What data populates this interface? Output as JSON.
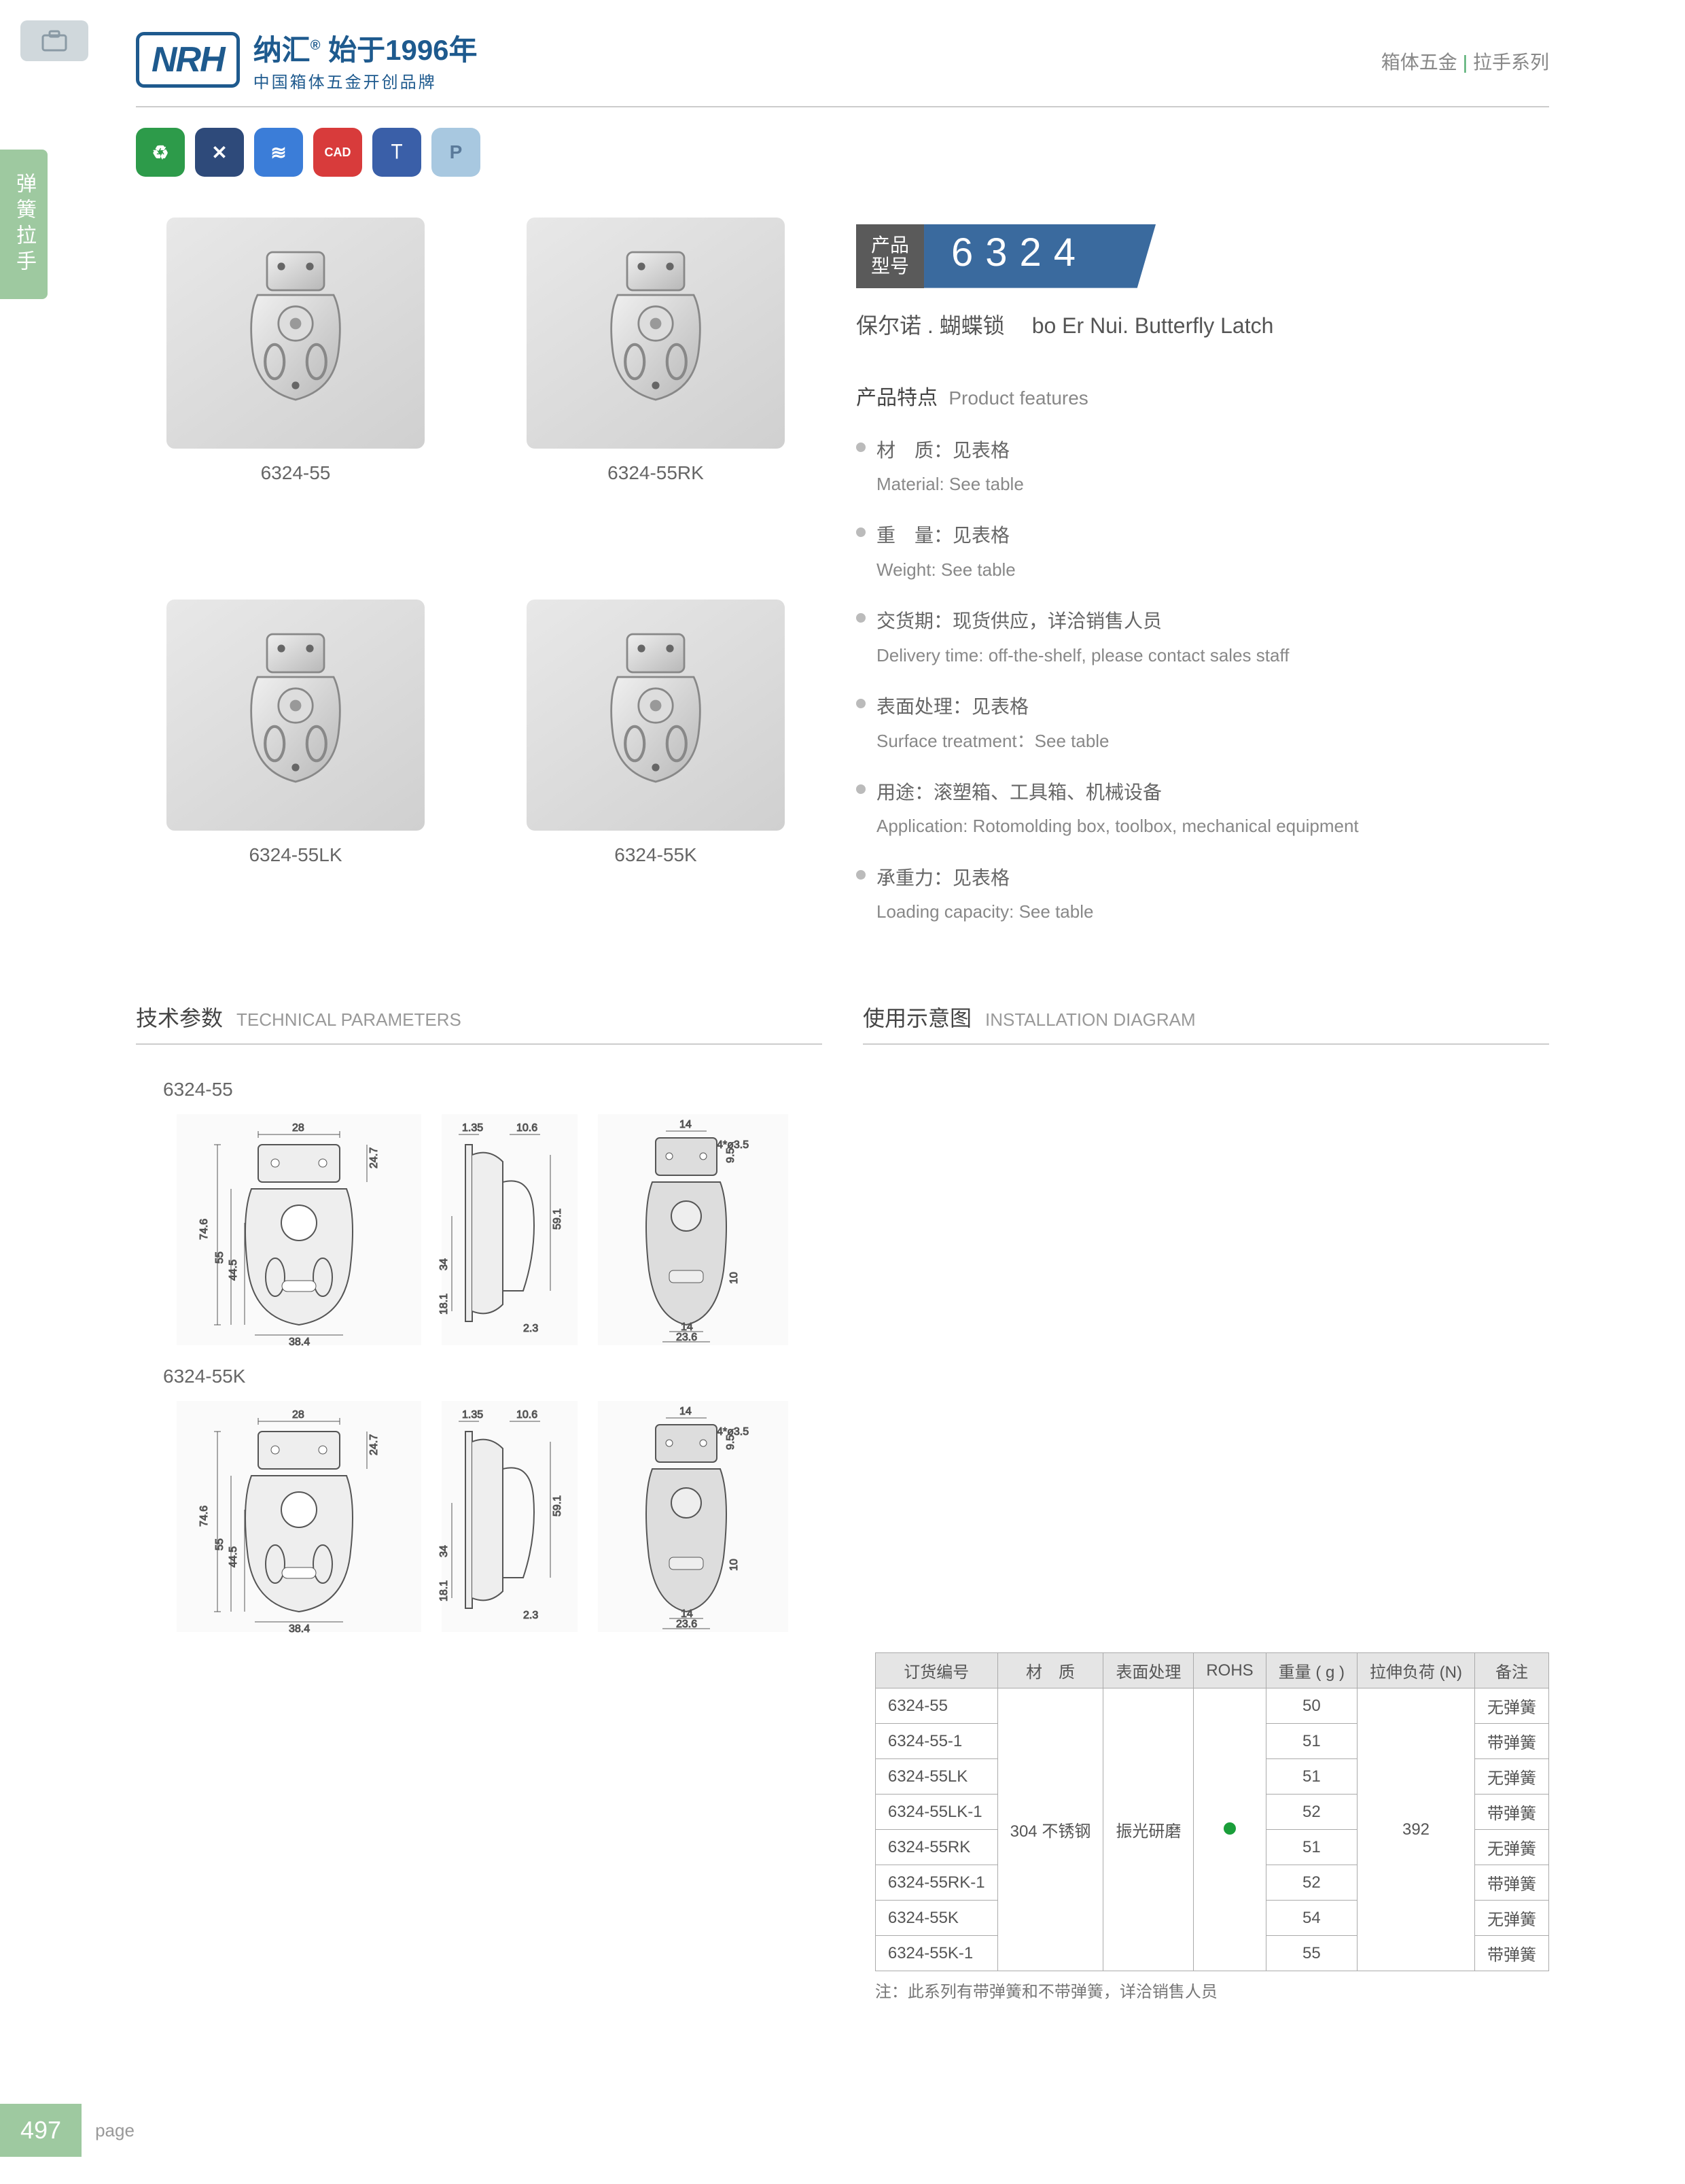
{
  "header": {
    "logo_text": "NRH",
    "brand_cn": "纳汇",
    "brand_year": "始于1996年",
    "brand_sub": "中国箱体五金开创品牌",
    "category": "箱体五金",
    "series": "拉手系列"
  },
  "side_tab": "弹簧拉手",
  "icons": [
    {
      "color": "badge-green",
      "glyph": "♻"
    },
    {
      "color": "badge-navy",
      "glyph": "✕"
    },
    {
      "color": "badge-blue",
      "glyph": "≋"
    },
    {
      "color": "badge-red",
      "glyph": "CAD"
    },
    {
      "color": "badge-dblue",
      "glyph": "⟙"
    },
    {
      "color": "badge-lblue",
      "glyph": "P"
    }
  ],
  "products": [
    {
      "label": "6324-55"
    },
    {
      "label": "6324-55RK"
    },
    {
      "label": "6324-55LK"
    },
    {
      "label": "6324-55K"
    }
  ],
  "model": {
    "label_l1": "产品",
    "label_l2": "型号",
    "number": "6324"
  },
  "product_name": {
    "cn": "保尔诺 . 蝴蝶锁",
    "en": "bo Er Nui. Butterfly Latch"
  },
  "features_title": {
    "cn": "产品特点",
    "en": "Product features"
  },
  "features": [
    {
      "cn": "材　质：见表格",
      "en": "Material: See table"
    },
    {
      "cn": "重　量：见表格",
      "en": "Weight: See table"
    },
    {
      "cn": "交货期：现货供应，详洽销售人员",
      "en": "Delivery time: off-the-shelf, please contact sales staff"
    },
    {
      "cn": "表面处理：见表格",
      "en": "Surface treatment：See table"
    },
    {
      "cn": "用途：滚塑箱、工具箱、机械设备",
      "en": "Application: Rotomolding box, toolbox, mechanical equipment"
    },
    {
      "cn": "承重力：见表格",
      "en": "Loading capacity: See table"
    }
  ],
  "sections": {
    "tech": {
      "cn": "技术参数",
      "en": "TECHNICAL PARAMETERS"
    },
    "install": {
      "cn": "使用示意图",
      "en": "INSTALLATION DIAGRAM"
    }
  },
  "tech_labels": [
    "6324-55",
    "6324-55K"
  ],
  "dimensions": {
    "front": {
      "w": "28",
      "h": "74.6",
      "h2": "55",
      "h3": "44.5",
      "h4": "24.7",
      "bw": "38.4"
    },
    "side": {
      "t1": "1.35",
      "t2": "10.6",
      "h": "59.1",
      "h2": "34",
      "h3": "18.1",
      "r": "2.3"
    },
    "install": {
      "w": "14",
      "hole": "4*ø3.5",
      "h": "9.5",
      "h2": "10",
      "bw": "14",
      "bw2": "23.6"
    }
  },
  "table": {
    "headers": [
      "订货编号",
      "材　质",
      "表面处理",
      "ROHS",
      "重量 ( g )",
      "拉伸负荷 (N)",
      "备注"
    ],
    "material": "304 不锈钢",
    "surface": "振光研磨",
    "load": "392",
    "rows": [
      {
        "code": "6324-55",
        "weight": "50",
        "note": "无弹簧"
      },
      {
        "code": "6324-55-1",
        "weight": "51",
        "note": "带弹簧"
      },
      {
        "code": "6324-55LK",
        "weight": "51",
        "note": "无弹簧"
      },
      {
        "code": "6324-55LK-1",
        "weight": "52",
        "note": "带弹簧"
      },
      {
        "code": "6324-55RK",
        "weight": "51",
        "note": "无弹簧"
      },
      {
        "code": "6324-55RK-1",
        "weight": "52",
        "note": "带弹簧"
      },
      {
        "code": "6324-55K",
        "weight": "54",
        "note": "无弹簧"
      },
      {
        "code": "6324-55K-1",
        "weight": "55",
        "note": "带弹簧"
      }
    ],
    "note": "注：此系列有带弹簧和不带弹簧，详洽销售人员"
  },
  "footer": {
    "page": "497",
    "label": "page"
  },
  "colors": {
    "brand": "#1e5a8e",
    "accent_green": "#9ec9a0",
    "model_bg": "#3a6a9e",
    "model_label_bg": "#5a5a5a"
  }
}
